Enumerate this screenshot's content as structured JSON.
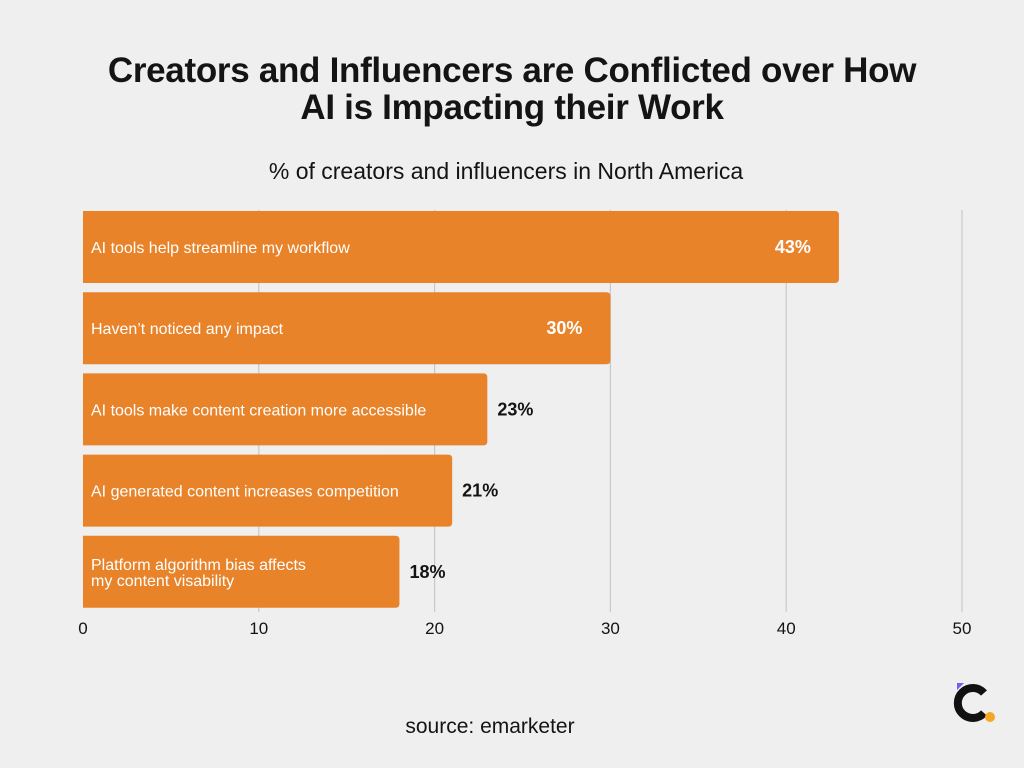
{
  "title_line1": "Creators and Influencers are Conflicted over How",
  "title_line2": "AI is Impacting their Work",
  "subtitle": "% of creators and influencers in North America",
  "source": "source: emarketer",
  "logo": {
    "icon": "brand-c-logo-icon",
    "colors": [
      "#111111",
      "#7b5cf0",
      "#f5a623"
    ]
  },
  "chart_data": {
    "type": "bar",
    "orientation": "horizontal",
    "categories": [
      "AI tools help streamline my workflow",
      "Haven’t noticed any impact",
      "AI tools make content creation more accessible",
      "AI generated content increases competition",
      "Platform algorithm bias affects\nmy content visability"
    ],
    "values": [
      43,
      30,
      23,
      21,
      18
    ],
    "value_labels": [
      "43%",
      "30%",
      "23%",
      "21%",
      "18%"
    ],
    "xlim": [
      0,
      50
    ],
    "xticks": [
      0,
      10,
      20,
      30,
      40,
      50
    ],
    "grid": true,
    "bar_color": "#e8832a",
    "grid_color": "#c8c8c8"
  }
}
